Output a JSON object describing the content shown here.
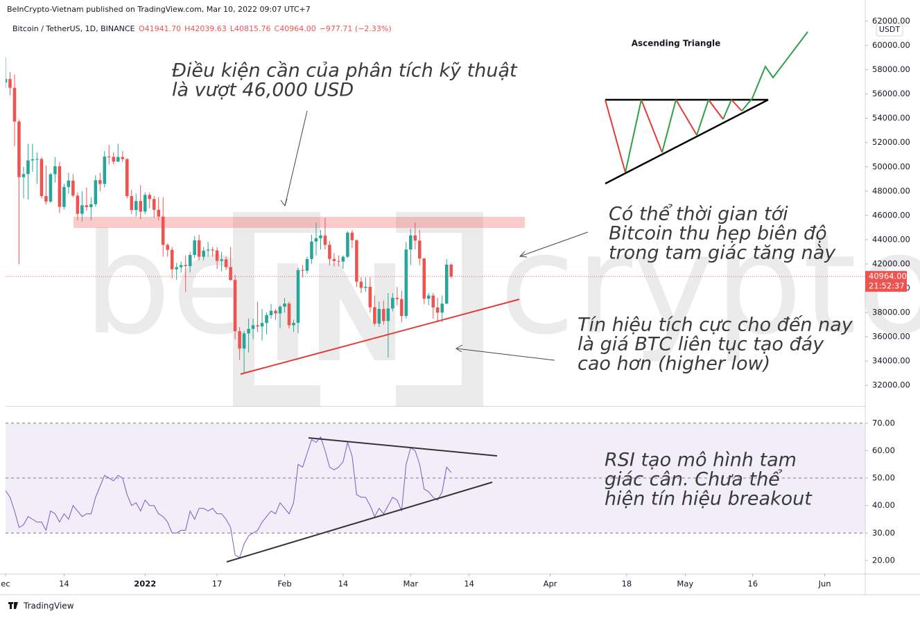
{
  "header": {
    "published": "BeInCrypto-Vietnam published on TradingView.com, Mar 10, 2022 09:07 UTC+7",
    "symbol": "Bitcoin / TetherUS, 1D, BINANCE",
    "ohlc": [
      "O41941.70",
      "H42039.63",
      "L40815.76",
      "C40964.00",
      "−977.71 (−2.33%)"
    ],
    "currency": "USDT",
    "price_tag": "40964.00",
    "countdown": "21:52:37"
  },
  "chart_data": [
    {
      "type": "candlestick",
      "up_color": "#26a69a",
      "down_color": "#ef5350",
      "x": [
        "2021-12-01",
        "2021-12-02",
        "2021-12-03",
        "2021-12-04",
        "2021-12-05",
        "2021-12-06",
        "2021-12-07",
        "2021-12-08",
        "2021-12-09",
        "2021-12-10",
        "2021-12-11",
        "2021-12-12",
        "2021-12-13",
        "2021-12-14",
        "2021-12-15",
        "2021-12-16",
        "2021-12-17",
        "2021-12-18",
        "2021-12-19",
        "2021-12-20",
        "2021-12-21",
        "2021-12-22",
        "2021-12-23",
        "2021-12-24",
        "2021-12-25",
        "2021-12-26",
        "2021-12-27",
        "2021-12-28",
        "2021-12-29",
        "2021-12-30",
        "2021-12-31",
        "2022-01-01",
        "2022-01-02",
        "2022-01-03",
        "2022-01-04",
        "2022-01-05",
        "2022-01-06",
        "2022-01-07",
        "2022-01-08",
        "2022-01-09",
        "2022-01-10",
        "2022-01-11",
        "2022-01-12",
        "2022-01-13",
        "2022-01-14",
        "2022-01-15",
        "2022-01-16",
        "2022-01-17",
        "2022-01-18",
        "2022-01-19",
        "2022-01-20",
        "2022-01-21",
        "2022-01-22",
        "2022-01-23",
        "2022-01-24",
        "2022-01-25",
        "2022-01-26",
        "2022-01-27",
        "2022-01-28",
        "2022-01-29",
        "2022-01-30",
        "2022-01-31",
        "2022-02-01",
        "2022-02-02",
        "2022-02-03",
        "2022-02-04",
        "2022-02-05",
        "2022-02-06",
        "2022-02-07",
        "2022-02-08",
        "2022-02-09",
        "2022-02-10",
        "2022-02-11",
        "2022-02-12",
        "2022-02-13",
        "2022-02-14",
        "2022-02-15",
        "2022-02-16",
        "2022-02-17",
        "2022-02-18",
        "2022-02-19",
        "2022-02-20",
        "2022-02-21",
        "2022-02-22",
        "2022-02-23",
        "2022-02-24",
        "2022-02-25",
        "2022-02-26",
        "2022-02-27",
        "2022-02-28",
        "2022-03-01",
        "2022-03-02",
        "2022-03-03",
        "2022-03-04",
        "2022-03-05",
        "2022-03-06",
        "2022-03-07",
        "2022-03-08",
        "2022-03-09",
        "2022-03-10"
      ],
      "open": [
        56950,
        57230,
        56510,
        53730,
        49150,
        49400,
        50530,
        50620,
        50640,
        47590,
        47140,
        49390,
        50050,
        46700,
        48340,
        48870,
        47630,
        46130,
        46830,
        46680,
        46920,
        48900,
        48590,
        50840,
        50820,
        50430,
        50810,
        50640,
        47590,
        46440,
        47180,
        46310,
        47690,
        47350,
        46460,
        45900,
        43570,
        43160,
        41560,
        41730,
        41910,
        41820,
        42740,
        43950,
        42590,
        43100,
        43180,
        43110,
        42250,
        42380,
        41740,
        40680,
        36460,
        35030,
        36280,
        36650,
        36950,
        36850,
        37140,
        37780,
        38140,
        37920,
        38480,
        38740,
        36950,
        37150,
        41500,
        41440,
        42410,
        43840,
        44120,
        44340,
        43570,
        42410,
        42240,
        42200,
        42590,
        44580,
        43960,
        40540,
        40030,
        40120,
        38430,
        37080,
        38290,
        37300,
        38330,
        39210,
        39110,
        37710,
        43190,
        44350,
        43920,
        42450,
        39140,
        39400,
        38420,
        37990,
        38730,
        41941.7
      ],
      "high": [
        59000,
        57800,
        57600,
        53900,
        50000,
        51900,
        51900,
        51200,
        50800,
        50100,
        49500,
        50800,
        50400,
        48600,
        49500,
        49400,
        47900,
        48000,
        48300,
        47500,
        49300,
        49500,
        51300,
        51800,
        51200,
        51900,
        51300,
        50700,
        48100,
        47800,
        48500,
        47900,
        47900,
        47600,
        47500,
        47500,
        43700,
        43400,
        42100,
        42200,
        42700,
        43000,
        44300,
        44400,
        43400,
        43800,
        43400,
        43400,
        43000,
        42600,
        43400,
        41100,
        36800,
        36500,
        37500,
        37500,
        38900,
        38300,
        38000,
        38700,
        38300,
        38600,
        39200,
        38900,
        37400,
        41700,
        41900,
        42600,
        44400,
        45400,
        44800,
        45800,
        43900,
        42900,
        42700,
        42700,
        44700,
        44800,
        44000,
        40900,
        40900,
        40900,
        39400,
        38900,
        39000,
        39600,
        39600,
        40100,
        39800,
        43800,
        44900,
        45400,
        44800,
        42500,
        39600,
        39600,
        39200,
        39400,
        42400,
        42039.63
      ],
      "low": [
        56500,
        55900,
        51700,
        42000,
        47400,
        47300,
        49600,
        48600,
        47400,
        46900,
        47000,
        48700,
        46200,
        46500,
        47800,
        47500,
        45600,
        45500,
        46400,
        45600,
        46700,
        48000,
        48300,
        50200,
        50200,
        50400,
        50400,
        47400,
        46100,
        45900,
        45700,
        46100,
        46600,
        45800,
        45600,
        42600,
        42600,
        40800,
        40700,
        41300,
        39700,
        41300,
        42500,
        42300,
        42300,
        42600,
        42600,
        41600,
        41400,
        41500,
        40600,
        35800,
        34100,
        33000,
        34700,
        35800,
        36400,
        35700,
        36200,
        37500,
        37400,
        36700,
        38000,
        36700,
        36400,
        36300,
        40900,
        41200,
        42000,
        42700,
        43200,
        43200,
        41900,
        41800,
        41800,
        41600,
        42500,
        43300,
        40100,
        39600,
        39700,
        38000,
        36900,
        36800,
        37000,
        34300,
        38100,
        38600,
        37200,
        37500,
        41900,
        43200,
        41900,
        38700,
        38600,
        37500,
        37200,
        37200,
        38700,
        40815.76
      ],
      "close": [
        57230,
        56510,
        53730,
        49150,
        49400,
        50530,
        50620,
        50640,
        47590,
        47140,
        49390,
        50050,
        46700,
        48340,
        48870,
        47630,
        46130,
        46830,
        46680,
        46920,
        48900,
        48590,
        50840,
        50820,
        50430,
        50810,
        50640,
        47590,
        46440,
        47180,
        46310,
        47690,
        47350,
        46460,
        45900,
        43570,
        43160,
        41560,
        41730,
        41910,
        41820,
        42740,
        43950,
        42590,
        43100,
        43180,
        43110,
        42250,
        42380,
        41740,
        40680,
        36460,
        35030,
        36280,
        36650,
        36950,
        36850,
        37140,
        37780,
        38140,
        37920,
        38480,
        38740,
        36950,
        37150,
        41500,
        41440,
        42410,
        43840,
        44120,
        44340,
        43570,
        42410,
        42240,
        42200,
        42590,
        44580,
        43960,
        40540,
        40030,
        40120,
        38430,
        37080,
        38290,
        37300,
        38330,
        39210,
        39110,
        37710,
        43190,
        44350,
        43920,
        42450,
        39140,
        39400,
        38420,
        37990,
        38730,
        41941.7,
        40964
      ],
      "xlim": [
        "2021-12-01",
        "2022-06-10"
      ],
      "ylim": [
        30300,
        62600
      ],
      "yticks": [
        {
          "value": 32000,
          "label": "32000.00"
        },
        {
          "value": 34000,
          "label": "34000.00"
        },
        {
          "value": 36000,
          "label": "36000.00"
        },
        {
          "value": 38000,
          "label": "38000.00"
        },
        {
          "value": 40000,
          "label": "40000.00"
        },
        {
          "value": 42000,
          "label": "42000.00"
        },
        {
          "value": 44000,
          "label": "44000.00"
        },
        {
          "value": 46000,
          "label": "46000.00"
        },
        {
          "value": 48000,
          "label": "48000.00"
        },
        {
          "value": 50000,
          "label": "50000.00"
        },
        {
          "value": 52000,
          "label": "52000.00"
        },
        {
          "value": 54000,
          "label": "54000.00"
        },
        {
          "value": 56000,
          "label": "56000.00"
        },
        {
          "value": 58000,
          "label": "58000.00"
        },
        {
          "value": 60000,
          "label": "60000.00"
        },
        {
          "value": 62000,
          "label": "62000.00"
        }
      ],
      "xticks": [
        {
          "value": "2021-12-01",
          "label": "ec"
        },
        {
          "value": "2021-12-14",
          "label": "14"
        },
        {
          "value": "2022-01-01",
          "label": "2022"
        },
        {
          "value": "2022-01-17",
          "label": "17"
        },
        {
          "value": "2022-02-01",
          "label": "Feb"
        },
        {
          "value": "2022-02-14",
          "label": "14"
        },
        {
          "value": "2022-03-01",
          "label": "Mar"
        },
        {
          "value": "2022-03-14",
          "label": "14"
        },
        {
          "value": "2022-04-01",
          "label": "Apr"
        },
        {
          "value": "2022-04-18",
          "label": "18"
        },
        {
          "value": "2022-05-01",
          "label": "May"
        },
        {
          "value": "2022-05-16",
          "label": "16"
        },
        {
          "value": "2022-06-01",
          "label": "Jun"
        }
      ],
      "watermark": [
        "be",
        "crypto"
      ],
      "pattern_title": "Ascending Triangle",
      "annotations": [
        [
          "Điều kiện cần của phân tích kỹ thuật",
          "là vượt 46,000 USD"
        ],
        [
          "Có thể thời gian tới",
          "Bitcoin thu hẹp biên độ",
          "trong tam giác tăng này"
        ],
        [
          "Tín hiệu tích cực cho đến nay",
          "là giá BTC liên tục tạo đáy",
          "cao hơn (higher low)"
        ]
      ]
    },
    {
      "type": "line",
      "color": "#7e57c2",
      "values": [
        45.5,
        43,
        38,
        32,
        33,
        36,
        35,
        34,
        34,
        31,
        38,
        37,
        34,
        37,
        35,
        40,
        38,
        36,
        37,
        37,
        43,
        47,
        51,
        50,
        49,
        51,
        50,
        44,
        40,
        41,
        38,
        42,
        40,
        40,
        37,
        36,
        34,
        30,
        30,
        31,
        31,
        38,
        35,
        39,
        39,
        38,
        39,
        37,
        37,
        35,
        32,
        22,
        21,
        26,
        29,
        30,
        31,
        34,
        36,
        38,
        37,
        41,
        39,
        37,
        41,
        55,
        54,
        59,
        64,
        63,
        65,
        60,
        54,
        53,
        54,
        56,
        63,
        58,
        44,
        43,
        43,
        40,
        36,
        39,
        37,
        40,
        43,
        42,
        38,
        55,
        61,
        60,
        55,
        46,
        45,
        43,
        42,
        45,
        54,
        52
      ],
      "ylim": [
        15.2,
        76
      ],
      "yticks": [
        {
          "value": 20,
          "label": "20.00"
        },
        {
          "value": 30,
          "label": "30.00"
        },
        {
          "value": 40,
          "label": "40.00"
        },
        {
          "value": 50,
          "label": "50.00"
        },
        {
          "value": 60,
          "label": "60.00"
        },
        {
          "value": 70,
          "label": "70.00"
        }
      ],
      "levels": [
        30,
        50,
        70
      ],
      "annotations": [
        [
          "RSI tạo mô hình tam",
          "giác cân. Chưa thể",
          "hiện tín hiệu breakout"
        ]
      ]
    }
  ],
  "footer": "TradingView"
}
